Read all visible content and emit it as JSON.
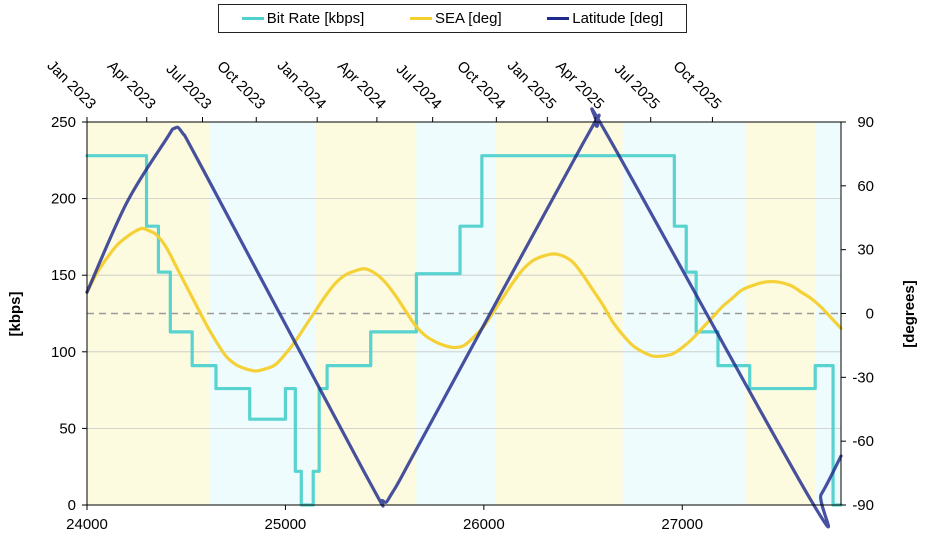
{
  "chart_data": {
    "type": "line",
    "legend": {
      "position": "top",
      "items": [
        {
          "label": "Bit Rate [kbps]",
          "color": "#4fd1cd"
        },
        {
          "label": "SEA [deg]",
          "color": "#f4cf2d"
        },
        {
          "label": "Latitude [deg]",
          "color": "#1e2a8c"
        }
      ]
    },
    "x_axis": {
      "range": [
        24000,
        27800
      ],
      "tick_values": [
        24000,
        25000,
        26000,
        27000
      ],
      "tick_labels": [
        "24000",
        "25000",
        "26000",
        "27000"
      ]
    },
    "x2_axis": {
      "position": "top",
      "tick_values": [
        24000,
        24301,
        24582,
        24853,
        25160,
        25461,
        25742,
        26063,
        26320,
        26561,
        26841,
        27152
      ],
      "tick_labels": [
        "Jan 2023",
        "Apr 2023",
        "Jul 2023",
        "Oct 2023",
        "Jan 2024",
        "Apr 2024",
        "Jul 2024",
        "Oct 2024",
        "Jan 2025",
        "Apr 2025",
        "Jul 2025",
        "Oct 2025"
      ]
    },
    "y_axis": {
      "label": "[kbps]",
      "range": [
        0,
        250
      ],
      "tick_values": [
        0,
        50,
        100,
        150,
        200,
        250
      ],
      "tick_labels": [
        "0",
        "50",
        "100",
        "150",
        "200",
        "250"
      ],
      "grid": true
    },
    "y2_axis": {
      "label": "[degrees]",
      "range": [
        -90,
        90
      ],
      "tick_values": [
        90,
        60,
        30,
        0,
        -30,
        -60,
        -90
      ],
      "tick_labels": [
        "90",
        "60",
        "30",
        "0",
        "-30",
        "-60",
        "-90"
      ]
    },
    "zero_reference_line": {
      "y2": 0,
      "style": "dashed"
    },
    "background_bands": [
      {
        "from": 24000,
        "to": 24620,
        "color": "#fcfbdf"
      },
      {
        "from": 24620,
        "to": 25150,
        "color": "#eefcfd"
      },
      {
        "from": 25150,
        "to": 25660,
        "color": "#fcfbdf"
      },
      {
        "from": 25660,
        "to": 26060,
        "color": "#eefcfd"
      },
      {
        "from": 26060,
        "to": 26700,
        "color": "#fcfbdf"
      },
      {
        "from": 26700,
        "to": 27320,
        "color": "#eefcfd"
      },
      {
        "from": 27320,
        "to": 27670,
        "color": "#fcfbdf"
      },
      {
        "from": 27670,
        "to": 27800,
        "color": "#eefcfd"
      }
    ],
    "series": [
      {
        "name": "Bit Rate [kbps]",
        "axis": "y",
        "color": "#4fd1cd",
        "shape": "step",
        "points": [
          [
            24000,
            228
          ],
          [
            24300,
            228
          ],
          [
            24300,
            182
          ],
          [
            24360,
            182
          ],
          [
            24360,
            152
          ],
          [
            24420,
            152
          ],
          [
            24420,
            113
          ],
          [
            24530,
            113
          ],
          [
            24530,
            91
          ],
          [
            24650,
            91
          ],
          [
            24650,
            76
          ],
          [
            24820,
            76
          ],
          [
            24820,
            56
          ],
          [
            25000,
            56
          ],
          [
            25000,
            76
          ],
          [
            25050,
            76
          ],
          [
            25050,
            22
          ],
          [
            25080,
            22
          ],
          [
            25080,
            0
          ],
          [
            25140,
            0
          ],
          [
            25140,
            22
          ],
          [
            25170,
            22
          ],
          [
            25170,
            76
          ],
          [
            25210,
            76
          ],
          [
            25210,
            91
          ],
          [
            25430,
            91
          ],
          [
            25430,
            113
          ],
          [
            25660,
            113
          ],
          [
            25660,
            151
          ],
          [
            25880,
            151
          ],
          [
            25880,
            182
          ],
          [
            25990,
            182
          ],
          [
            25990,
            228
          ],
          [
            26960,
            228
          ],
          [
            26960,
            182
          ],
          [
            27020,
            182
          ],
          [
            27020,
            152
          ],
          [
            27070,
            152
          ],
          [
            27070,
            113
          ],
          [
            27180,
            113
          ],
          [
            27180,
            91
          ],
          [
            27340,
            91
          ],
          [
            27340,
            76
          ],
          [
            27670,
            76
          ],
          [
            27670,
            91
          ],
          [
            27760,
            91
          ],
          [
            27760,
            0
          ],
          [
            27800,
            0
          ]
        ]
      },
      {
        "name": "SEA [deg]",
        "axis": "y2",
        "color": "#f4cf2d",
        "shape": "smooth",
        "points": [
          [
            24000,
            10
          ],
          [
            24050,
            19
          ],
          [
            24100,
            26
          ],
          [
            24150,
            32
          ],
          [
            24200,
            36
          ],
          [
            24250,
            39
          ],
          [
            24280,
            40
          ],
          [
            24310,
            39
          ],
          [
            24350,
            37
          ],
          [
            24400,
            31
          ],
          [
            24450,
            22
          ],
          [
            24500,
            13
          ],
          [
            24550,
            4
          ],
          [
            24600,
            -5
          ],
          [
            24650,
            -13
          ],
          [
            24700,
            -20
          ],
          [
            24750,
            -24
          ],
          [
            24800,
            -26
          ],
          [
            24850,
            -27
          ],
          [
            24900,
            -26
          ],
          [
            24950,
            -24
          ],
          [
            25000,
            -19
          ],
          [
            25050,
            -13
          ],
          [
            25100,
            -6
          ],
          [
            25150,
            1
          ],
          [
            25200,
            8
          ],
          [
            25250,
            14
          ],
          [
            25300,
            18
          ],
          [
            25350,
            20
          ],
          [
            25400,
            21
          ],
          [
            25450,
            19
          ],
          [
            25500,
            15
          ],
          [
            25550,
            9
          ],
          [
            25600,
            2
          ],
          [
            25650,
            -5
          ],
          [
            25700,
            -10
          ],
          [
            25750,
            -13
          ],
          [
            25800,
            -15
          ],
          [
            25850,
            -16
          ],
          [
            25900,
            -15
          ],
          [
            25950,
            -11
          ],
          [
            26000,
            -6
          ],
          [
            26050,
            1
          ],
          [
            26100,
            8
          ],
          [
            26150,
            15
          ],
          [
            26200,
            21
          ],
          [
            26250,
            25
          ],
          [
            26300,
            27
          ],
          [
            26350,
            28
          ],
          [
            26400,
            27
          ],
          [
            26450,
            24
          ],
          [
            26500,
            18
          ],
          [
            26550,
            11
          ],
          [
            26600,
            4
          ],
          [
            26650,
            -4
          ],
          [
            26700,
            -10
          ],
          [
            26750,
            -15
          ],
          [
            26800,
            -18
          ],
          [
            26850,
            -20
          ],
          [
            26900,
            -20
          ],
          [
            26950,
            -19
          ],
          [
            27000,
            -16
          ],
          [
            27050,
            -12
          ],
          [
            27100,
            -7
          ],
          [
            27150,
            -2
          ],
          [
            27200,
            3
          ],
          [
            27250,
            7
          ],
          [
            27300,
            11
          ],
          [
            27350,
            13
          ],
          [
            27400,
            14.5
          ],
          [
            27450,
            15
          ],
          [
            27500,
            14.5
          ],
          [
            27550,
            13
          ],
          [
            27600,
            10
          ],
          [
            27650,
            7
          ],
          [
            27700,
            3
          ],
          [
            27750,
            -2
          ],
          [
            27800,
            -7
          ]
        ]
      },
      {
        "name": "Latitude [deg]",
        "axis": "y2",
        "color": "#1e2a8c",
        "shape": "smooth",
        "points": [
          [
            24000,
            10
          ],
          [
            24200,
            52
          ],
          [
            24400,
            82
          ],
          [
            24440,
            87
          ],
          [
            24480,
            85
          ],
          [
            24600,
            65
          ],
          [
            25400,
            -75
          ],
          [
            25490,
            -88
          ],
          [
            25540,
            -84
          ],
          [
            25700,
            -57
          ],
          [
            26500,
            80
          ],
          [
            26570,
            88
          ],
          [
            26640,
            81
          ],
          [
            27650,
            -88
          ],
          [
            27700,
            -85
          ],
          [
            27800,
            -67
          ]
        ]
      }
    ]
  }
}
